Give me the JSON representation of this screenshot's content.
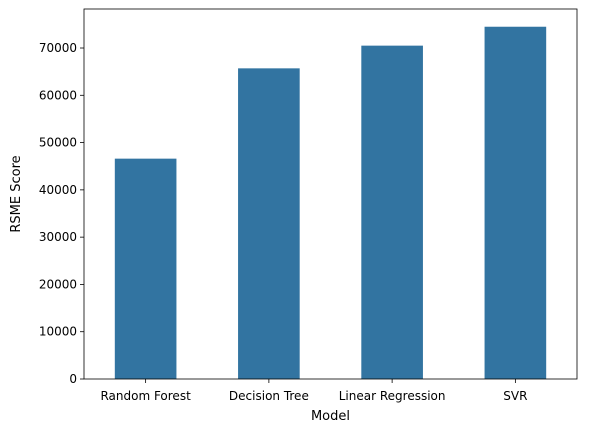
{
  "chart_data": {
    "type": "bar",
    "title": "",
    "xlabel": "Model",
    "ylabel": "RSME Score",
    "categories": [
      "Random Forest",
      "Decision Tree",
      "Linear Regression",
      "SVR"
    ],
    "values": [
      46600,
      65700,
      70500,
      74500
    ],
    "ylim": [
      0,
      78250
    ],
    "yticks": [
      0,
      10000,
      20000,
      30000,
      40000,
      50000,
      60000,
      70000
    ],
    "ytick_labels": [
      "0",
      "10000",
      "20000",
      "30000",
      "40000",
      "50000",
      "60000",
      "70000"
    ],
    "grid": false,
    "legend": "none",
    "bar_color": "#3274a1",
    "axis_color": "#000000"
  }
}
